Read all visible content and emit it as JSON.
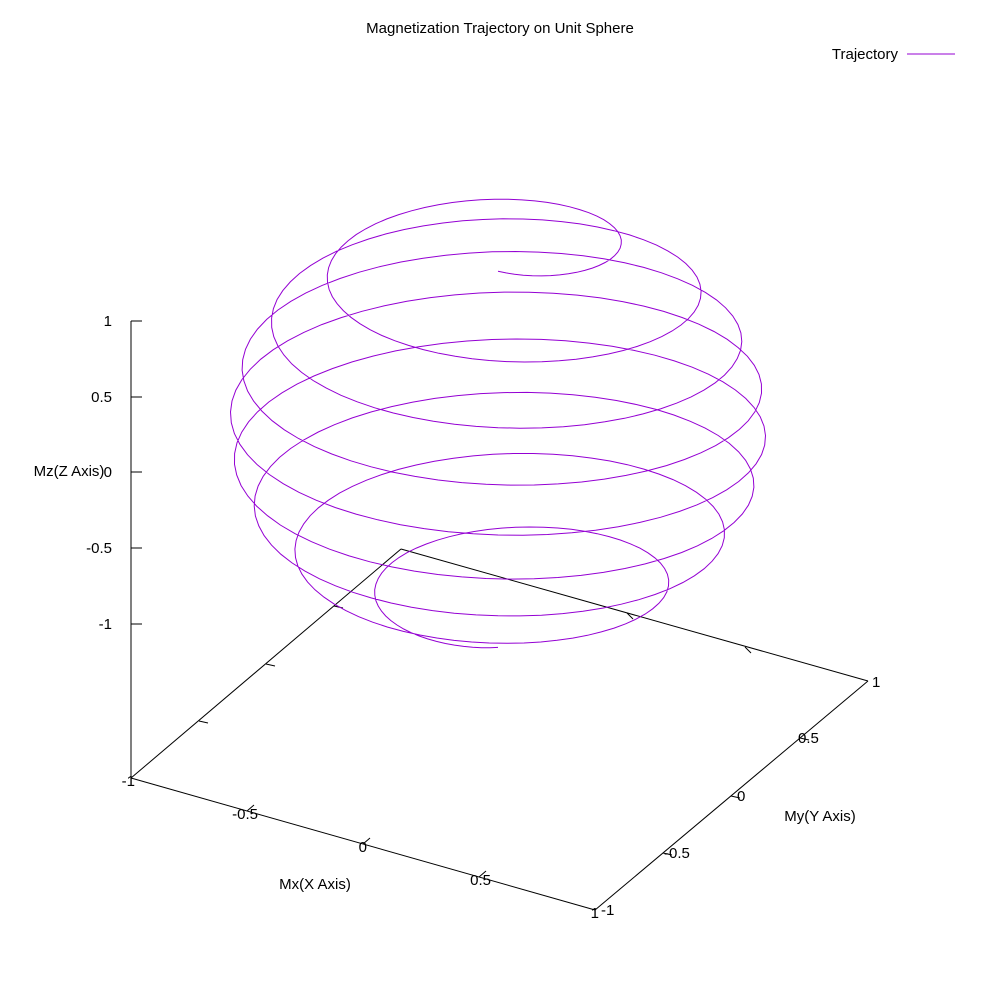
{
  "chart_data": {
    "type": "line",
    "title": "Magnetization Trajectory on Unit Sphere",
    "xlabel": "Mx(X Axis)",
    "ylabel": "My(Y Axis)",
    "zlabel": "Mz(Z Axis)",
    "xlim": [
      -1,
      1
    ],
    "ylim": [
      -1,
      1
    ],
    "zlim": [
      -1,
      1
    ],
    "x_ticks": [
      "-1",
      "-0.5",
      "0",
      "0.5",
      "1"
    ],
    "y_ticks": [
      "-1",
      "-0.5",
      "0",
      "0.5",
      "1"
    ],
    "z_ticks": [
      "1",
      "0.5",
      "0",
      "-0.5",
      "-1"
    ],
    "grid": false,
    "legend_position": "top-right",
    "colors": {
      "series": "#9400d3",
      "axis": "#000000"
    },
    "series": [
      {
        "name": "Trajectory",
        "parametric": {
          "description": "spiral on unit sphere from north pole to south pole",
          "turns": 8,
          "z_start": 0.95,
          "z_end": -0.95,
          "points": 540
        }
      }
    ]
  }
}
